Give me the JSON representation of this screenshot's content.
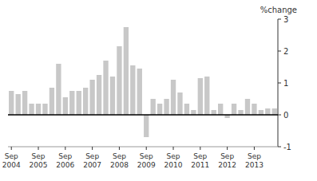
{
  "chart_data": {
    "type": "bar",
    "ylabel": "%change",
    "categories": [
      "Sep\n2004",
      null,
      null,
      null,
      "Sep\n2005",
      null,
      null,
      null,
      "Sep\n2006",
      null,
      null,
      null,
      "Sep\n2007",
      null,
      null,
      null,
      "Sep\n2008",
      null,
      null,
      null,
      "Sep\n2009",
      null,
      null,
      null,
      "Sep\n2010",
      null,
      null,
      null,
      "Sep\n2011",
      null,
      null,
      null,
      "Sep\n2012",
      null,
      null,
      null,
      "Sep\n2013",
      null,
      null,
      null
    ],
    "values": [
      0.75,
      0.65,
      0.75,
      0.35,
      0.35,
      0.35,
      0.85,
      1.6,
      0.55,
      0.75,
      0.75,
      0.85,
      1.1,
      1.25,
      1.7,
      1.2,
      2.15,
      2.75,
      1.55,
      1.45,
      -0.7,
      0.5,
      0.35,
      0.5,
      1.1,
      0.7,
      0.35,
      0.15,
      1.15,
      1.2,
      0.15,
      0.35,
      -0.1,
      0.35,
      0.15,
      0.5,
      0.35,
      0.15,
      0.2,
      0.2
    ],
    "color": "#c8c8c8",
    "ylim": [
      -1,
      3
    ],
    "yticks": [
      -1,
      0,
      1,
      2,
      3
    ],
    "grid": false
  }
}
